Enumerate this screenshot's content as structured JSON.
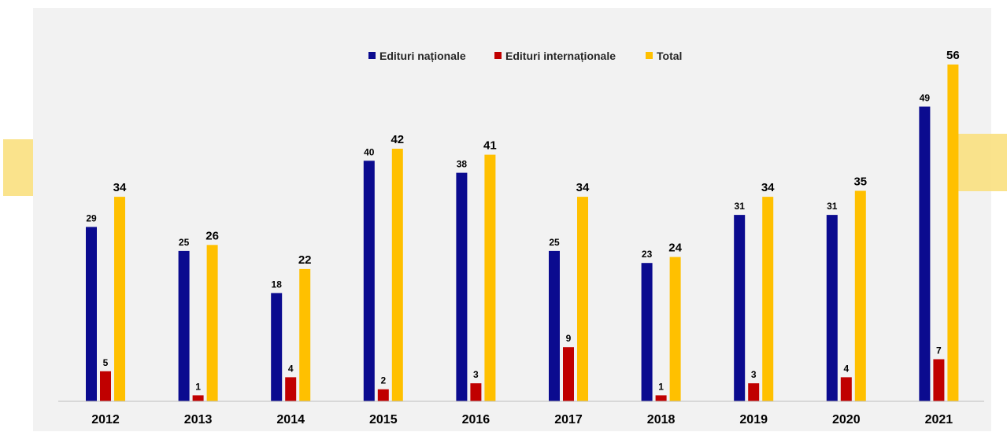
{
  "chart_data": {
    "type": "bar",
    "categories": [
      "2012",
      "2013",
      "2014",
      "2015",
      "2016",
      "2017",
      "2018",
      "2019",
      "2020",
      "2021"
    ],
    "series": [
      {
        "name": "Edituri naționale",
        "color": "#0b0b8f",
        "values": [
          29,
          25,
          18,
          40,
          38,
          25,
          23,
          31,
          31,
          49
        ]
      },
      {
        "name": "Edituri internaționale",
        "color": "#c00000",
        "values": [
          5,
          1,
          4,
          2,
          3,
          9,
          1,
          3,
          4,
          7
        ]
      },
      {
        "name": "Total",
        "color": "#ffc000",
        "values": [
          34,
          26,
          22,
          42,
          41,
          34,
          24,
          34,
          35,
          56
        ]
      }
    ],
    "title": "",
    "xlabel": "",
    "ylabel": "",
    "ylim": [
      0,
      56
    ],
    "grid": false,
    "legend_position": "top-center",
    "data_labels": true
  },
  "colors": {
    "panel_background": "#f2f2f2",
    "accent_decoration": "#f9e080",
    "axis_line": "#bfbfbf"
  }
}
